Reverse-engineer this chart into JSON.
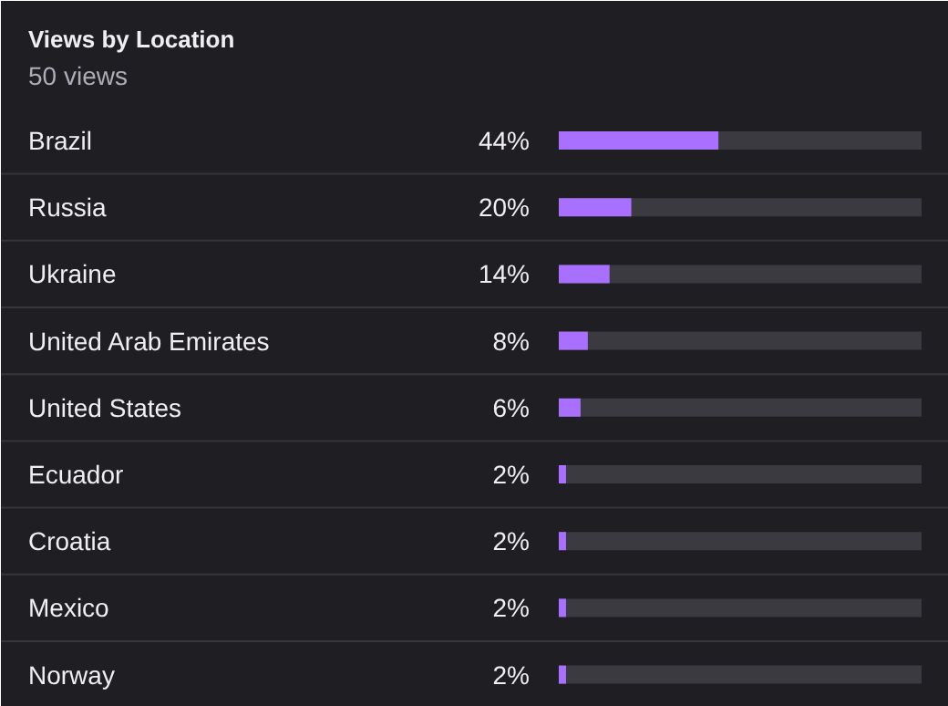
{
  "chart_data": {
    "type": "bar",
    "orientation": "horizontal",
    "title": "Views by Location",
    "subtitle": "50 views",
    "categories": [
      "Brazil",
      "Russia",
      "Ukraine",
      "United Arab Emirates",
      "United States",
      "Ecuador",
      "Croatia",
      "Mexico",
      "Norway"
    ],
    "values": [
      44,
      20,
      14,
      8,
      6,
      2,
      2,
      2,
      2
    ],
    "value_labels": [
      "44%",
      "20%",
      "14%",
      "8%",
      "6%",
      "2%",
      "2%",
      "2%",
      "2%"
    ],
    "color": "#a970ff",
    "xlim": [
      0,
      100
    ],
    "tick_labels": false
  }
}
